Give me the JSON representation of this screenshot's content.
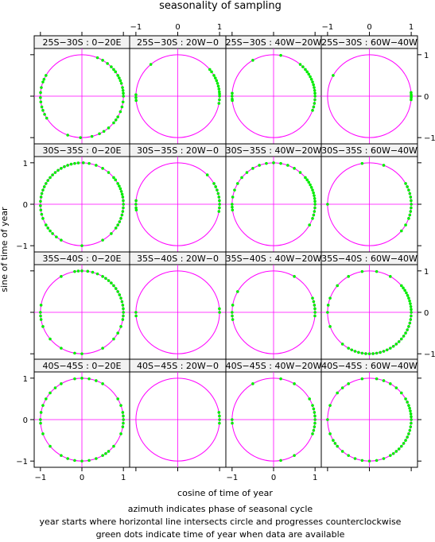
{
  "chart_data": {
    "type": "scatter",
    "title": "seasonality of sampling",
    "xlabel": "cosine of time of year",
    "ylabel": "sine of time of year",
    "xlim": [
      -1.15,
      1.15
    ],
    "ylim": [
      -1.15,
      1.15
    ],
    "ticks": [
      -1,
      0,
      1
    ],
    "tick_labels": [
      "−1",
      "0",
      "1"
    ],
    "colors": {
      "circle": "#ff00ff",
      "crosshair": "#ff00ff",
      "points": "#00ee00",
      "strip_bg": "#f2f2f2"
    },
    "captions": [
      "azimuth indicates phase of seasonal cycle",
      "year starts where horizontal line intersects circle and progresses counterclockwise",
      "green dots indicate time of year when data are available"
    ],
    "panels": [
      {
        "label": "25S−30S : 0−20E",
        "points_deg": [
          0,
          4,
          8,
          12,
          18,
          22,
          26,
          30,
          36,
          40,
          45,
          52,
          60,
          68,
          150,
          156,
          160,
          168,
          175,
          182,
          188,
          195,
          200,
          206,
          212,
          250,
          268,
          284,
          295,
          302,
          310,
          320,
          325,
          330,
          338,
          345,
          352
        ]
      },
      {
        "label": "25S−30S : 20W−0",
        "points_deg": [
          0,
          3,
          6,
          10,
          14,
          18,
          22,
          26,
          30,
          36,
          40,
          130,
          178,
          182,
          186,
          350,
          355
        ]
      },
      {
        "label": "25S−30S : 40W−20W",
        "points_deg": [
          0,
          4,
          8,
          12,
          16,
          20,
          24,
          28,
          32,
          36,
          40,
          45,
          50,
          80,
          120,
          176,
          180,
          184,
          186,
          340,
          345,
          350,
          355
        ]
      },
      {
        "label": "25S−30S : 60W−40W",
        "points_deg": [
          0,
          2,
          5,
          355,
          358,
          150
        ]
      },
      {
        "label": "30S−35S : 0−20E",
        "points_deg": [
          0,
          5,
          10,
          14,
          18,
          22,
          26,
          30,
          36,
          40,
          50,
          60,
          70,
          80,
          88,
          95,
          100,
          105,
          110,
          115,
          120,
          125,
          130,
          135,
          140,
          145,
          150,
          155,
          160,
          165,
          170,
          176,
          182,
          188,
          194,
          200,
          210,
          215,
          220,
          225,
          232,
          240,
          270,
          300,
          315,
          325,
          330,
          335,
          340,
          345,
          350,
          355
        ]
      },
      {
        "label": "30S−35S : 20W−0",
        "points_deg": [
          0,
          5,
          10,
          15,
          20,
          25,
          30,
          45,
          175,
          180,
          185,
          188,
          350,
          355
        ]
      },
      {
        "label": "30S−35S : 40W−20W",
        "points_deg": [
          0,
          4,
          8,
          12,
          16,
          20,
          24,
          28,
          32,
          36,
          40,
          50,
          60,
          70,
          80,
          90,
          100,
          110,
          120,
          130,
          140,
          150,
          160,
          170,
          180,
          184,
          188,
          330,
          340,
          345,
          350,
          355
        ]
      },
      {
        "label": "30S−35S : 60W−40W",
        "points_deg": [
          0,
          5,
          10,
          15,
          20,
          25,
          30,
          70,
          100,
          180,
          320,
          330,
          340,
          345,
          350,
          355
        ]
      },
      {
        "label": "35S−40S : 0−20E",
        "points_deg": [
          0,
          5,
          10,
          15,
          20,
          25,
          30,
          35,
          40,
          45,
          50,
          55,
          60,
          68,
          75,
          82,
          90,
          95,
          100,
          120,
          170,
          180,
          185,
          190,
          200,
          220,
          240,
          260,
          270,
          300,
          320,
          330,
          340,
          350,
          355
        ]
      },
      {
        "label": "35S−40S : 20W−0",
        "points_deg": [
          0,
          5,
          180,
          185
        ]
      },
      {
        "label": "35S−40S : 40W−20W",
        "points_deg": [
          0,
          5,
          10,
          15,
          20,
          60,
          150,
          170,
          180,
          185,
          190,
          355
        ]
      },
      {
        "label": "35S−40S : 60W−40W",
        "points_deg": [
          0,
          4,
          8,
          12,
          16,
          20,
          24,
          28,
          32,
          36,
          40,
          60,
          80,
          100,
          120,
          140,
          160,
          170,
          180,
          200,
          230,
          240,
          245,
          250,
          255,
          260,
          265,
          270,
          275,
          280,
          285,
          290,
          295,
          300,
          305,
          310,
          315,
          320,
          325,
          330,
          335,
          340,
          345,
          350,
          355
        ]
      },
      {
        "label": "40S−45S : 0−20E",
        "points_deg": [
          0,
          5,
          10,
          20,
          30,
          60,
          70,
          80,
          90,
          100,
          120,
          130,
          140,
          150,
          160,
          170,
          180,
          185,
          200,
          220,
          240,
          250,
          260,
          270,
          280,
          290,
          300,
          305,
          310,
          320,
          340,
          350,
          355
        ]
      },
      {
        "label": "40S−45S : 20W−0",
        "points_deg": [
          0,
          5,
          10,
          355
        ]
      },
      {
        "label": "40S−45S : 40W−20W",
        "points_deg": [
          0,
          5,
          10,
          15,
          20,
          30,
          60,
          80,
          120,
          180,
          185,
          280,
          300,
          340,
          345,
          350,
          355
        ]
      },
      {
        "label": "40S−45S : 60W−40W",
        "points_deg": [
          0,
          4,
          8,
          12,
          16,
          20,
          25,
          30,
          40,
          50,
          60,
          70,
          80,
          100,
          120,
          130,
          140,
          160,
          180,
          200,
          210,
          215,
          220,
          230,
          240,
          250,
          260,
          270,
          280,
          290,
          300,
          305,
          310,
          315,
          320,
          325,
          330,
          335,
          340,
          345,
          350,
          355
        ]
      }
    ]
  }
}
